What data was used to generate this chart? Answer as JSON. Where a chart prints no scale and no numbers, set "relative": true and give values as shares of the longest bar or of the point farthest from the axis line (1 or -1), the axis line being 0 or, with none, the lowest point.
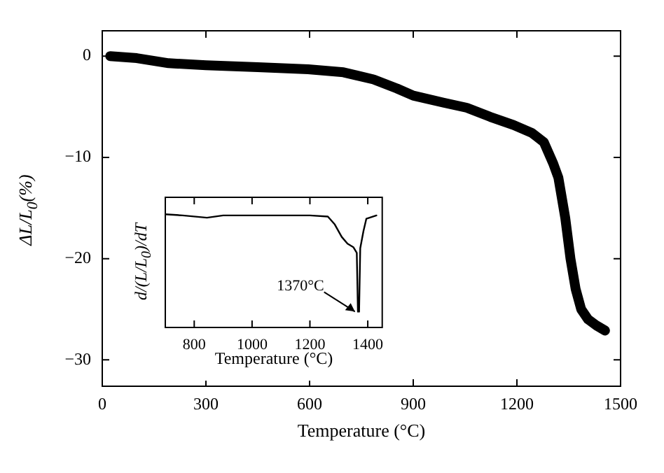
{
  "chart_data": [
    {
      "type": "line",
      "xlabel": "Temperature (°C)",
      "ylabel": "ΔL/L$_{0}$(%)",
      "xlim": [
        0,
        1500
      ],
      "xticks": [
        0,
        300,
        600,
        900,
        1200,
        1500
      ],
      "ylim": [
        -32.6,
        2.5
      ],
      "yticks": [
        -30,
        -20,
        -10,
        0
      ],
      "grid": false,
      "legend": false,
      "marker": "none",
      "line_style": "solid",
      "series": [
        {
          "color": "#000000",
          "x": [
            23,
            100,
            192,
            300,
            450,
            596,
            698,
            785,
            853,
            900,
            988,
            1055,
            1123,
            1190,
            1244,
            1278,
            1305,
            1320,
            1340,
            1355,
            1370,
            1386,
            1406,
            1430,
            1455
          ],
          "values": [
            0,
            -0.2,
            -0.7,
            -0.9,
            -1.1,
            -1.3,
            -1.6,
            -2.3,
            -3.2,
            -3.9,
            -4.6,
            -5.1,
            -6.0,
            -6.8,
            -7.6,
            -8.5,
            -10.6,
            -12,
            -16,
            -20,
            -23,
            -25,
            -26,
            -26.6,
            -27.1
          ]
        }
      ]
    },
    {
      "type": "line",
      "relative": true,
      "xlabel": "Temperature (°C)",
      "ylabel": "d/(L/L$_{0}$)/dT",
      "xlim": [
        700,
        1450
      ],
      "xticks": [
        800,
        1000,
        1200,
        1400
      ],
      "tick_labels": "x",
      "grid": false,
      "legend": false,
      "marker": "none",
      "line_style": "solid",
      "annotations": [
        {
          "text": "1370°C",
          "x": 1370,
          "y": 0.14
        }
      ],
      "series": [
        {
          "color": "#000000",
          "x": [
            700,
            760,
            844,
            900,
            1000,
            1100,
            1200,
            1262,
            1286,
            1310,
            1330,
            1350,
            1362,
            1366,
            1370,
            1374,
            1385,
            1395,
            1430
          ],
          "values": [
            1.0,
            0.99,
            0.97,
            0.99,
            0.99,
            0.99,
            0.99,
            0.98,
            0.91,
            0.8,
            0.74,
            0.71,
            0.66,
            0.14,
            0.14,
            0.7,
            0.85,
            0.96,
            0.99
          ]
        }
      ]
    }
  ]
}
